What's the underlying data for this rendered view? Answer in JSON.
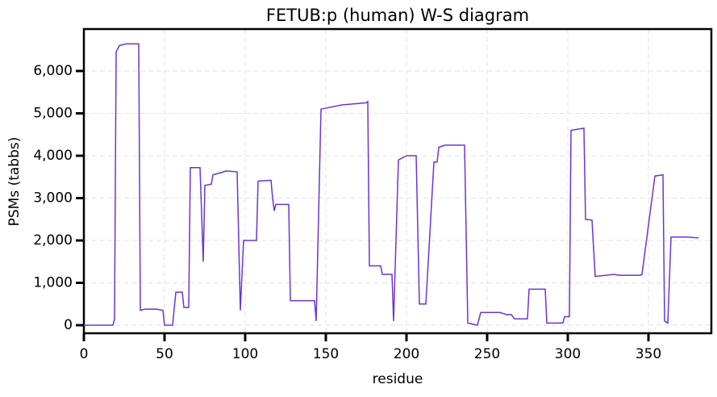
{
  "chart_data": {
    "type": "line",
    "title": "FETUB:p (human) W-S diagram",
    "x_label": "residue",
    "y_label": "PSMs (tabbs)",
    "x": [
      0,
      18,
      19,
      20,
      22,
      26,
      34,
      35,
      38,
      45,
      49,
      50,
      55,
      57,
      61,
      62,
      65,
      66,
      72,
      74,
      75,
      79,
      80,
      85,
      88,
      95,
      97,
      99,
      107,
      108,
      116,
      117,
      118,
      119,
      127,
      128,
      143,
      144,
      147,
      160,
      175,
      176,
      177,
      184,
      185,
      191,
      192,
      195,
      200,
      206,
      208,
      212,
      217,
      219,
      220,
      224,
      236,
      238,
      244,
      246,
      258,
      262,
      265,
      267,
      275,
      276,
      286,
      287,
      297,
      298,
      301,
      302,
      310,
      311,
      315,
      317,
      329,
      331,
      345,
      346,
      354,
      359,
      360,
      362,
      364,
      374,
      381
    ],
    "values": [
      0,
      0,
      150,
      6450,
      6600,
      6640,
      6640,
      350,
      380,
      380,
      350,
      0,
      0,
      780,
      780,
      420,
      420,
      3720,
      3720,
      1500,
      3300,
      3330,
      3550,
      3600,
      3640,
      3620,
      350,
      2000,
      2000,
      3400,
      3420,
      3000,
      2700,
      2850,
      2850,
      580,
      580,
      100,
      5100,
      5200,
      5250,
      5280,
      1400,
      1400,
      1200,
      1200,
      100,
      3900,
      4000,
      4000,
      500,
      500,
      3850,
      3850,
      4200,
      4250,
      4250,
      50,
      0,
      300,
      300,
      250,
      250,
      150,
      150,
      850,
      850,
      50,
      50,
      200,
      200,
      4600,
      4650,
      2500,
      2480,
      1150,
      1200,
      1180,
      1180,
      1200,
      3520,
      3550,
      100,
      50,
      2080,
      2080,
      2060
    ],
    "color": "#6a35d4",
    "xlim": [
      0,
      389
    ],
    "ylim": [
      -190,
      6990
    ],
    "xticks": [
      0,
      50,
      100,
      150,
      200,
      250,
      300,
      350
    ],
    "yticks": [
      0,
      {
        "value": 1000,
        "label": "1,000"
      },
      {
        "value": 2000,
        "label": "2,000"
      },
      {
        "value": 3000,
        "label": "3,000"
      },
      {
        "value": 4000,
        "label": "4,000"
      },
      {
        "value": 5000,
        "label": "5,000"
      },
      {
        "value": 6000,
        "label": "6,000"
      }
    ],
    "grid": true
  }
}
